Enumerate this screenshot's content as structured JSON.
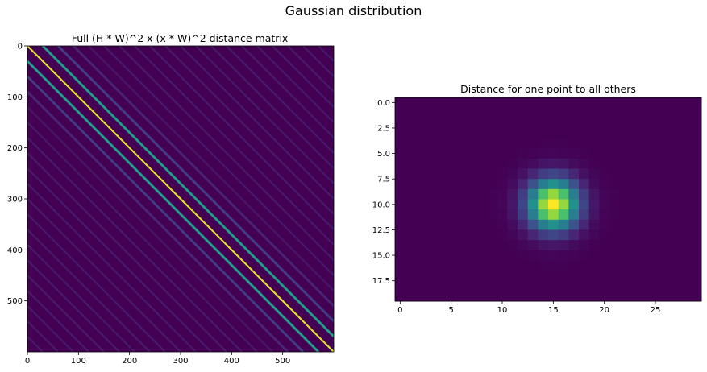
{
  "figure": {
    "suptitle": "Gaussian  distribution"
  },
  "colors": {
    "background": "#440154",
    "colormap": "viridis",
    "peak": "#fde725"
  },
  "chart_data": [
    {
      "type": "heatmap",
      "title": "Full (H * W)^2 x (x * W)^2 distance matrix",
      "xlabel": "",
      "ylabel": "",
      "matrix_size": 600,
      "xlim": [
        0,
        600
      ],
      "ylim": [
        600,
        0
      ],
      "x_ticks": [
        0,
        100,
        200,
        300,
        400,
        500
      ],
      "y_ticks": [
        0,
        100,
        200,
        300,
        400,
        500
      ],
      "x_tick_labels": [
        "0",
        "100",
        "200",
        "300",
        "400",
        "500"
      ],
      "y_tick_labels": [
        "0",
        "100",
        "200",
        "300",
        "400",
        "500"
      ],
      "band_period": 30,
      "diagonals": [
        {
          "offset": 0,
          "intensity": 0.95
        },
        {
          "offset": 30,
          "intensity": 0.55
        },
        {
          "offset": -30,
          "intensity": 0.55
        },
        {
          "offset": 60,
          "intensity": 0.18
        },
        {
          "offset": -60,
          "intensity": 0.18
        },
        {
          "offset": 90,
          "intensity": 0.1
        },
        {
          "offset": -90,
          "intensity": 0.1
        },
        {
          "offset": 120,
          "intensity": 0.05
        },
        {
          "offset": -120,
          "intensity": 0.05
        }
      ],
      "grid": false,
      "origin": "upper"
    },
    {
      "type": "heatmap",
      "title": "Distance for one point to all others",
      "xlabel": "",
      "ylabel": "",
      "rows": 20,
      "cols": 30,
      "center": [
        15,
        10
      ],
      "sigma": 1.7,
      "xlim": [
        -0.5,
        29.5
      ],
      "ylim": [
        19.5,
        -0.5
      ],
      "x_ticks": [
        0,
        5,
        10,
        15,
        20,
        25
      ],
      "x_tick_labels": [
        "0",
        "5",
        "10",
        "15",
        "20",
        "25"
      ],
      "y_ticks": [
        0.0,
        2.5,
        5.0,
        7.5,
        10.0,
        12.5,
        15.0,
        17.5
      ],
      "y_tick_labels": [
        "0.0",
        "2.5",
        "5.0",
        "7.5",
        "10.0",
        "12.5",
        "15.0",
        "17.5"
      ],
      "grid": false,
      "origin": "upper"
    }
  ]
}
